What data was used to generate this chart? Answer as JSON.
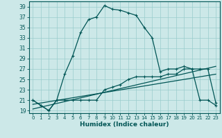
{
  "xlabel": "Humidex (Indice chaleur)",
  "x_ticks": [
    0,
    1,
    2,
    3,
    4,
    5,
    6,
    7,
    8,
    9,
    10,
    11,
    12,
    13,
    14,
    15,
    16,
    17,
    18,
    19,
    20,
    21,
    22,
    23
  ],
  "xlim": [
    -0.5,
    23.5
  ],
  "ylim": [
    18.5,
    40.0
  ],
  "y_ticks": [
    19,
    21,
    23,
    25,
    27,
    29,
    31,
    33,
    35,
    37,
    39
  ],
  "bg_color": "#cce8e8",
  "grid_color": "#99cccc",
  "line_color": "#005555",
  "line1_x": [
    0,
    1,
    2,
    3,
    4,
    5,
    6,
    7,
    8,
    9,
    10,
    11,
    12,
    13,
    14,
    15,
    16,
    17,
    18,
    19,
    20,
    21,
    22,
    23
  ],
  "line1_y": [
    21.0,
    20.0,
    19.0,
    21.0,
    26.0,
    29.5,
    34.0,
    36.5,
    37.0,
    39.2,
    38.5,
    38.3,
    37.8,
    37.3,
    35.0,
    33.0,
    26.5,
    27.0,
    27.0,
    27.5,
    27.0,
    21.0,
    21.0,
    20.0
  ],
  "line2_x": [
    0,
    1,
    2,
    3,
    4,
    5,
    6,
    7,
    8,
    9,
    10,
    11,
    12,
    13,
    14,
    15,
    16,
    17,
    18,
    19,
    20,
    21,
    22,
    23
  ],
  "line2_y": [
    21.0,
    20.0,
    19.0,
    21.0,
    21.0,
    21.0,
    21.0,
    21.0,
    21.0,
    23.0,
    23.5,
    24.0,
    25.0,
    25.5,
    25.5,
    25.5,
    25.5,
    26.0,
    26.0,
    27.0,
    27.0,
    27.0,
    27.0,
    20.5
  ],
  "line3_x": [
    0,
    23
  ],
  "line3_y": [
    19.3,
    27.5
  ],
  "line4_x": [
    0,
    23
  ],
  "line4_y": [
    20.2,
    26.0
  ]
}
